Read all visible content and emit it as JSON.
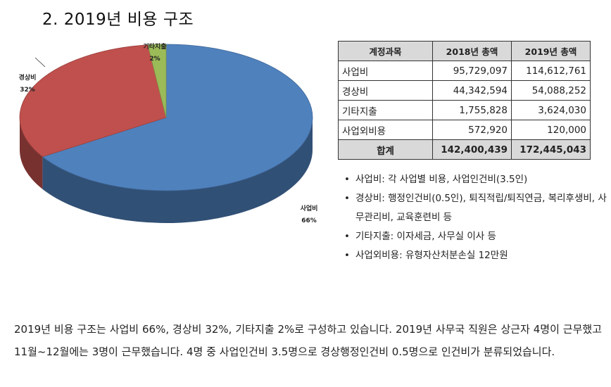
{
  "heading": "2. 2019년 비용 구조",
  "chart_data": {
    "type": "pie",
    "title": "",
    "slices": [
      {
        "label": "사업비",
        "pct_label": "66%",
        "value": 66,
        "color": "#4f81bd"
      },
      {
        "label": "경상비",
        "pct_label": "32%",
        "value": 32,
        "color": "#c0504d"
      },
      {
        "label": "기타지출",
        "pct_label": "2%",
        "value": 2,
        "color": "#9bbb59"
      }
    ],
    "style": "3d-exploded"
  },
  "table": {
    "headers": [
      "계정과목",
      "2018년 총액",
      "2019년 총액"
    ],
    "rows": [
      [
        "사업비",
        "95,729,097",
        "114,612,761"
      ],
      [
        "경상비",
        "44,342,594",
        "54,088,252"
      ],
      [
        "기타지출",
        "1,755,828",
        "3,624,030"
      ],
      [
        "사업외비용",
        "572,920",
        "120,000"
      ]
    ],
    "total": [
      "합계",
      "142,400,439",
      "172,445,043"
    ]
  },
  "notes": [
    "사업비: 각 사업별 비용, 사업인건비(3.5인)",
    "경상비: 행정인건비(0.5인), 퇴직적립/퇴직연금, 복리후생비, 사무관리비, 교육훈련비 등",
    "기타지출: 이자세금, 사무실 이사 등",
    "사업외비용: 유형자산처분손실 12만원"
  ],
  "summary": "2019년 비용 구조는 사업비 66%, 경상비 32%, 기타지출 2%로 구성하고 있습니다. 2019년 사무국 직원은 상근자 4명이 근무했고 11월~12월에는 3명이 근무했습니다. 4명 중 사업인건비 3.5명으로 경상행정인건비 0.5명으로 인건비가 분류되었습니다."
}
